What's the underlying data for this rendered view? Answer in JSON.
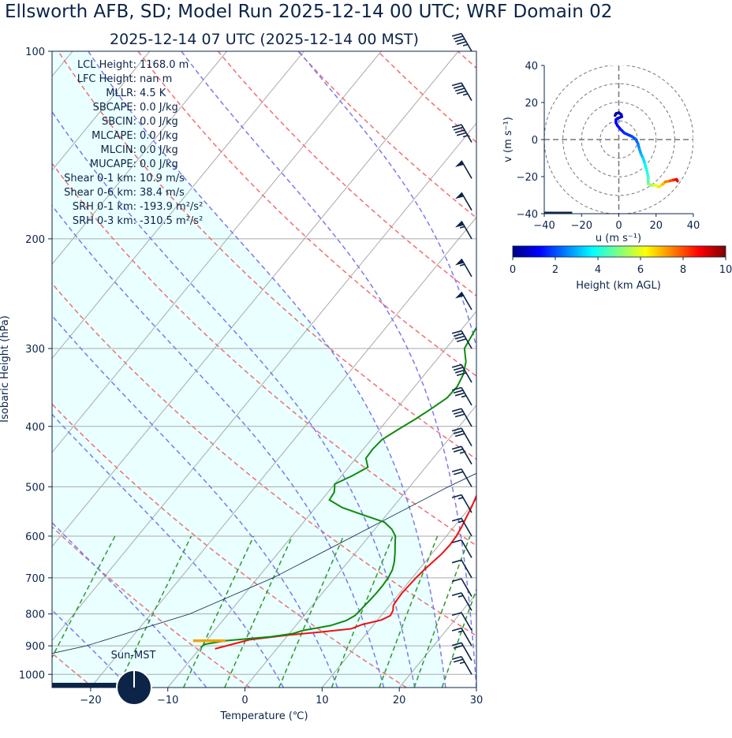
{
  "header": {
    "title": "Ellsworth AFB, SD; Model Run 2025-12-14 00 UTC; WRF Domain 02",
    "subtitle": "2025-12-14 07 UTC  (2025-12-14 00 MST)"
  },
  "stats": [
    {
      "label": "LCL Height:",
      "value": "1168.0 m"
    },
    {
      "label": "LFC Height:",
      "value": "nan m"
    },
    {
      "label": "MLLR:",
      "value": "4.5 K"
    },
    {
      "label": "SBCAPE:",
      "value": "0.0 J/kg"
    },
    {
      "label": "SBCIN:",
      "value": "0.0 J/kg"
    },
    {
      "label": "MLCAPE:",
      "value": "0.0 J/kg"
    },
    {
      "label": "MLCIN:",
      "value": "0.0 J/kg"
    },
    {
      "label": "MUCAPE:",
      "value": "0.0 J/kg"
    },
    {
      "label": "Shear 0-1 km:",
      "value": "10.9 m/s"
    },
    {
      "label": "Shear 0-6 km:",
      "value": "38.4 m/s"
    },
    {
      "label": "SRH 0-1 km:",
      "value": "-193.9 m²/s²"
    },
    {
      "label": "SRH 0-3 km:",
      "value": "-310.5 m²/s²"
    }
  ],
  "sun_label": "Sun-MST",
  "chart_data": [
    {
      "type": "line",
      "name": "skew-t",
      "xlabel": "Temperature (℃)",
      "ylabel": "Isobaric Height (hPa)",
      "xlim": [
        -25,
        30
      ],
      "ylim": [
        1050,
        100
      ],
      "y_scale": "log",
      "xticks": [
        "−20",
        "−10",
        "0",
        "10",
        "20",
        "30"
      ],
      "xtick_values": [
        -20,
        -10,
        0,
        10,
        20,
        30
      ],
      "yticks": [
        "100",
        "200",
        "300",
        "400",
        "500",
        "600",
        "700",
        "800",
        "900",
        "1000"
      ],
      "ytick_values": [
        100,
        200,
        300,
        400,
        500,
        600,
        700,
        800,
        900,
        1000
      ],
      "grid": true,
      "colors": {
        "temperature": "#ee1111",
        "dewpoint": "#108a10",
        "parcel": "#0b2447",
        "dry_adiabat": "#f07070",
        "moist_adiabat": "#7a7af0",
        "mixing_ratio": "#2a9a2a",
        "isotherm": "#aaaaaa",
        "cape_fill": "#eaffff",
        "lcl_marker": "#f2a20c",
        "wind_barb": "#0b2447"
      },
      "temperature": [
        [
          910,
          -8
        ],
        [
          880,
          -4.5
        ],
        [
          865,
          0
        ],
        [
          855,
          4
        ],
        [
          845,
          7.5
        ],
        [
          832,
          8.5
        ],
        [
          818,
          10.5
        ],
        [
          805,
          11.2
        ],
        [
          790,
          11
        ],
        [
          775,
          10.5
        ],
        [
          760,
          10.4
        ],
        [
          740,
          10.3
        ],
        [
          720,
          10.4
        ],
        [
          700,
          10.5
        ],
        [
          680,
          10.7
        ],
        [
          660,
          11
        ],
        [
          640,
          11.3
        ],
        [
          620,
          11.4
        ],
        [
          600,
          11.3
        ],
        [
          580,
          11
        ],
        [
          560,
          10.6
        ],
        [
          540,
          10.2
        ],
        [
          520,
          9.7
        ],
        [
          500,
          9.2
        ],
        [
          480,
          8.6
        ],
        [
          460,
          7.8
        ],
        [
          440,
          7
        ],
        [
          420,
          6
        ],
        [
          400,
          4.9
        ],
        [
          380,
          3.6
        ],
        [
          360,
          2.3
        ],
        [
          340,
          1.1
        ],
        [
          320,
          -0.3
        ],
        [
          300,
          -1.7
        ],
        [
          280,
          -3.2
        ],
        [
          260,
          -4.6
        ],
        [
          245,
          -5.4
        ],
        [
          230,
          -6
        ],
        [
          215,
          -6.3
        ],
        [
          200,
          -5.9
        ],
        [
          190,
          -5.1
        ],
        [
          180,
          -3.1
        ],
        [
          170,
          -1.1
        ],
        [
          160,
          1.3
        ],
        [
          150,
          4
        ],
        [
          140,
          6.8
        ],
        [
          130,
          9.8
        ],
        [
          120,
          13
        ],
        [
          110,
          16.5
        ],
        [
          100,
          20.5
        ]
      ],
      "dewpoint": [
        [
          905,
          -10
        ],
        [
          895,
          -9.8
        ],
        [
          883,
          -7.5
        ],
        [
          870,
          -2
        ],
        [
          860,
          0.5
        ],
        [
          850,
          1.5
        ],
        [
          835,
          4.5
        ],
        [
          820,
          6
        ],
        [
          805,
          6.6
        ],
        [
          790,
          6.7
        ],
        [
          775,
          6.8
        ],
        [
          760,
          6.9
        ],
        [
          740,
          7
        ],
        [
          720,
          7
        ],
        [
          700,
          6.9
        ],
        [
          680,
          6.6
        ],
        [
          660,
          6
        ],
        [
          640,
          5.2
        ],
        [
          620,
          4.3
        ],
        [
          600,
          3.4
        ],
        [
          585,
          2.2
        ],
        [
          570,
          0.5
        ],
        [
          555,
          -3
        ],
        [
          540,
          -6.5
        ],
        [
          525,
          -9
        ],
        [
          510,
          -9.2
        ],
        [
          495,
          -10
        ],
        [
          480,
          -8.6
        ],
        [
          465,
          -7.5
        ],
        [
          450,
          -8.7
        ],
        [
          435,
          -8.8
        ],
        [
          420,
          -8.6
        ],
        [
          405,
          -7.6
        ],
        [
          390,
          -6.5
        ],
        [
          375,
          -5.5
        ],
        [
          360,
          -4.6
        ],
        [
          345,
          -4.5
        ],
        [
          330,
          -5
        ],
        [
          315,
          -6
        ],
        [
          300,
          -7.6
        ],
        [
          280,
          -8.2
        ],
        [
          260,
          -8.6
        ],
        [
          240,
          -9
        ],
        [
          220,
          -9.5
        ],
        [
          200,
          -9.7
        ],
        [
          185,
          -9.8
        ],
        [
          170,
          -10
        ],
        [
          160,
          -10.2
        ],
        [
          150,
          -10.3
        ],
        [
          140,
          -10.6
        ],
        [
          130,
          -9
        ],
        [
          120,
          -7
        ],
        [
          110,
          -4.5
        ],
        [
          100,
          -1.3
        ]
      ],
      "parcel": [
        [
          1050,
          -45
        ],
        [
          900,
          -25
        ],
        [
          800,
          -15
        ],
        [
          700,
          -8
        ],
        [
          600,
          -2
        ],
        [
          500,
          5
        ],
        [
          400,
          15
        ],
        [
          300,
          28
        ],
        [
          200,
          45
        ],
        [
          100,
          70
        ]
      ],
      "lcl": [
        [
          883,
          -11.7
        ],
        [
          883,
          -7.5
        ]
      ],
      "wind_barbs_kt": [
        [
          100,
          10,
          45
        ],
        [
          120,
          10,
          45
        ],
        [
          140,
          10,
          45
        ],
        [
          160,
          10,
          50
        ],
        [
          180,
          10,
          50
        ],
        [
          200,
          10,
          55
        ],
        [
          230,
          10,
          55
        ],
        [
          260,
          10,
          50
        ],
        [
          300,
          10,
          40
        ],
        [
          340,
          10,
          40
        ],
        [
          370,
          10,
          35
        ],
        [
          400,
          10,
          30
        ],
        [
          430,
          10,
          30
        ],
        [
          460,
          10,
          25
        ],
        [
          500,
          10,
          20
        ],
        [
          550,
          10,
          15
        ],
        [
          600,
          10,
          15
        ],
        [
          650,
          10,
          10
        ],
        [
          700,
          10,
          10
        ],
        [
          750,
          10,
          10
        ],
        [
          790,
          10,
          15
        ],
        [
          850,
          10,
          10
        ],
        [
          900,
          10,
          15
        ],
        [
          950,
          10,
          20
        ],
        [
          1000,
          10,
          25
        ]
      ]
    },
    {
      "type": "line",
      "name": "hodograph",
      "xlabel": "u (m s⁻¹)",
      "ylabel": "v (m s⁻¹)",
      "xlim": [
        -40,
        40
      ],
      "ylim": [
        -40,
        40
      ],
      "xticks": [
        "−40",
        "−20",
        "0",
        "20",
        "40"
      ],
      "yticks": [
        "−40",
        "−20",
        "0",
        "20",
        "40"
      ],
      "tick_values": [
        -40,
        -20,
        0,
        20,
        40
      ],
      "ring_radii": [
        10,
        20,
        30,
        40
      ],
      "colorbar": {
        "label": "Height (km AGL)",
        "ticks": [
          "0",
          "2",
          "4",
          "6",
          "8",
          "10"
        ],
        "tick_values": [
          0,
          2,
          4,
          6,
          8,
          10
        ],
        "range": [
          0,
          10
        ],
        "colormap": "jet"
      },
      "points": [
        [
          -2,
          13,
          0.1
        ],
        [
          -1.5,
          14,
          0.3
        ],
        [
          0,
          14.5,
          0.5
        ],
        [
          1.3,
          13.5,
          0.7
        ],
        [
          1.6,
          12.3,
          0.9
        ],
        [
          -0.6,
          11.5,
          1.0
        ],
        [
          -1.5,
          10.8,
          1.1
        ],
        [
          -1.5,
          9,
          1.2
        ],
        [
          -0.7,
          7.5,
          1.3
        ],
        [
          1,
          5.5,
          1.5
        ],
        [
          3,
          3.5,
          1.7
        ],
        [
          7,
          1.7,
          2.0
        ],
        [
          9,
          0.3,
          2.2
        ],
        [
          10.3,
          -2.2,
          2.5
        ],
        [
          11,
          -5,
          2.8
        ],
        [
          12,
          -8,
          3.1
        ],
        [
          13,
          -10,
          3.4
        ],
        [
          14,
          -13,
          3.7
        ],
        [
          15,
          -16.5,
          4.1
        ],
        [
          15.8,
          -20.5,
          4.5
        ],
        [
          15.8,
          -23.8,
          5.0
        ],
        [
          17.6,
          -24.8,
          5.5
        ],
        [
          19.3,
          -24.5,
          6.0
        ],
        [
          21.5,
          -25.6,
          6.5
        ],
        [
          23.5,
          -24.2,
          7.0
        ],
        [
          25,
          -22.8,
          7.5
        ],
        [
          27.5,
          -22.3,
          8.0
        ],
        [
          29.4,
          -21.8,
          8.5
        ],
        [
          31,
          -21.5,
          9.0
        ],
        [
          31.5,
          -22.4,
          9.5
        ]
      ]
    }
  ]
}
